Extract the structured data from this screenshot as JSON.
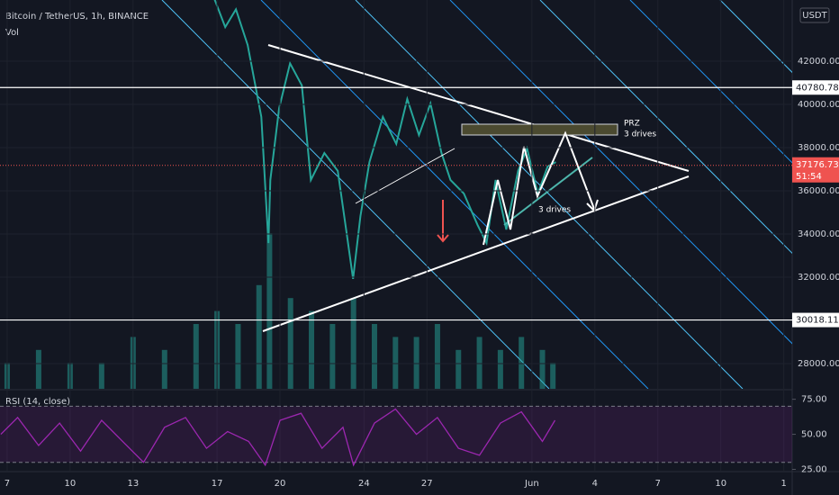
{
  "header": {
    "symbol": "Bitcoin / TetherUS, 1h, BINANCE",
    "volume_label": "Vol",
    "currency": "USDT"
  },
  "chart_data": [
    {
      "type": "line",
      "color": "#26a69a",
      "x": [
        16.83,
        17.39,
        17.9,
        18.46,
        19.11,
        19.45,
        19.54,
        19.96,
        20.48,
        21.04,
        21.47,
        22.11,
        22.75,
        23.18,
        23.48,
        23.83,
        24.26,
        24.9,
        25.54,
        26.06,
        26.62,
        27.17,
        27.69,
        28.12,
        28.76,
        29.41,
        29.84,
        30.27,
        30.78,
        31.34,
        31.77,
        32.28,
        32.75,
        33.14
      ],
      "values": [
        45000,
        43580,
        44400,
        42750,
        39420,
        33580,
        36500,
        39830,
        41900,
        40880,
        36500,
        37750,
        36920,
        34000,
        31920,
        34830,
        37330,
        39420,
        38170,
        40250,
        38580,
        40040,
        37750,
        36500,
        35870,
        34420,
        33580,
        36500,
        34210,
        36920,
        37960,
        35870,
        37130,
        37330
      ],
      "xlim": [
        6.66,
        44.4
      ],
      "xticks": [
        7,
        10,
        13,
        17,
        20,
        24,
        27,
        {
          "value": 32,
          "label": "Jun"
        },
        {
          "value": 35,
          "label": "4"
        },
        {
          "value": 38,
          "label": "7"
        },
        {
          "value": 41,
          "label": "10"
        },
        {
          "value": 44,
          "label": "1"
        }
      ],
      "ylim": [
        26833,
        44833
      ],
      "yticks": [
        {
          "value": 28000,
          "label": "28000.00"
        },
        {
          "value": 32000,
          "label": "32000.00"
        },
        {
          "value": 34000,
          "label": "34000.00"
        },
        {
          "value": 36000,
          "label": "36000.00"
        },
        {
          "value": 38000,
          "label": "38000.00"
        },
        {
          "value": 40000,
          "label": "40000.00"
        },
        {
          "value": 42000,
          "label": "42000.00"
        }
      ],
      "hlines": [
        {
          "value": 40780.78,
          "label": "40780.78"
        },
        {
          "value": 30018.11,
          "label": "30018.11"
        }
      ],
      "last_price": {
        "value": 37176.73,
        "label": "37176.73",
        "countdown": "51:54"
      },
      "annotations": [
        "PRZ",
        "3 drives",
        "3 drives"
      ]
    },
    {
      "type": "bar",
      "title": "Vol",
      "color": "#26a69a",
      "x": [
        7,
        8.5,
        10,
        11.5,
        13,
        14.5,
        16,
        17,
        18,
        19,
        19.5,
        20.5,
        21.5,
        22.5,
        23.5,
        24.5,
        25.5,
        26.5,
        27.5,
        28.5,
        29.5,
        30.5,
        31.5,
        32.5,
        33
      ],
      "values": [
        2,
        3,
        2,
        2,
        4,
        3,
        5,
        6,
        5,
        8,
        12,
        7,
        6,
        5,
        7,
        5,
        4,
        4,
        5,
        3,
        4,
        3,
        4,
        3,
        2
      ],
      "ylim": [
        0,
        30
      ]
    },
    {
      "type": "line",
      "title": "RSI (14, close)",
      "color": "#9c27b0",
      "x": [
        6.7,
        7.5,
        8.5,
        9.5,
        10.5,
        11.5,
        12.5,
        13.5,
        14.5,
        15.5,
        16.5,
        17.5,
        18.5,
        19.3,
        20,
        21,
        22,
        23,
        23.5,
        24.5,
        25.5,
        26.5,
        27.5,
        28.5,
        29.5,
        30.5,
        31.5,
        32.5,
        33.1
      ],
      "values": [
        50,
        62,
        42,
        58,
        38,
        60,
        45,
        30,
        55,
        62,
        40,
        52,
        45,
        28,
        60,
        65,
        40,
        55,
        28,
        58,
        68,
        50,
        62,
        40,
        35,
        58,
        66,
        45,
        60
      ],
      "ylim": [
        23.4,
        79.9
      ],
      "yticks": [
        {
          "value": 25,
          "label": "25.00"
        },
        {
          "value": 50,
          "label": "50.00"
        },
        {
          "value": 75,
          "label": "75.00"
        }
      ],
      "levels": [
        70,
        30
      ]
    }
  ]
}
